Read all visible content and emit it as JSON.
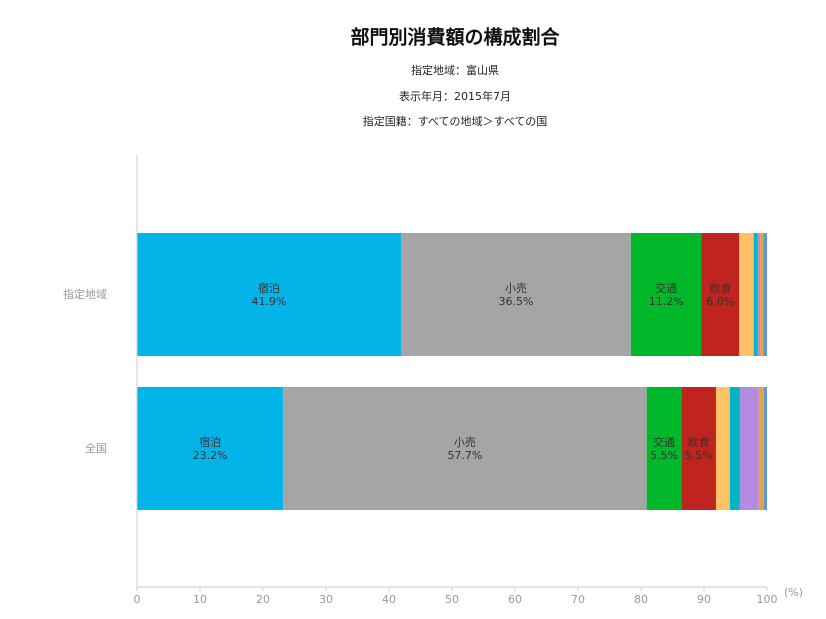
{
  "chart_data": {
    "type": "stacked-barh",
    "title": "部門別消費額の構成割合",
    "subtitles": [
      "指定地域：富山県",
      "表示年月：2015年7月",
      "指定国籍：すべての地域＞すべての国"
    ],
    "x_unit": "(%)",
    "categories": [
      "指定地域",
      "全国"
    ],
    "series": [
      {
        "name": "宿泊",
        "color": "#03b4e8",
        "values": [
          41.9,
          23.2
        ],
        "value_labels": [
          "41.9%",
          "23.2%"
        ]
      },
      {
        "name": "小売",
        "color": "#a5a5a5",
        "values": [
          36.5,
          57.7
        ],
        "value_labels": [
          "36.5%",
          "57.7%"
        ]
      },
      {
        "name": "交通",
        "color": "#00b82a",
        "values": [
          11.2,
          5.5
        ],
        "value_labels": [
          "11.2%",
          "5.5%"
        ]
      },
      {
        "name": "飲食",
        "color": "#c0241e",
        "values": [
          6.0,
          5.5
        ],
        "value_labels": [
          "6.0%",
          "5.5%"
        ]
      },
      {
        "name": null,
        "color": "#ffc266",
        "values": [
          2.3,
          2.2
        ]
      },
      {
        "name": null,
        "color": "#00b5c7",
        "values": [
          0.6,
          1.6
        ]
      },
      {
        "name": null,
        "color": "#b48cdf",
        "values": [
          0.4,
          3.0
        ]
      },
      {
        "name": null,
        "color": "#e8a040",
        "values": [
          0.5,
          0.8
        ]
      },
      {
        "name": null,
        "color": "#5b9bd5",
        "values": [
          0.6,
          0.5
        ]
      }
    ],
    "xlim": [
      0,
      100
    ],
    "xticks": [
      0,
      10,
      20,
      30,
      40,
      50,
      60,
      70,
      80,
      90,
      100
    ]
  }
}
